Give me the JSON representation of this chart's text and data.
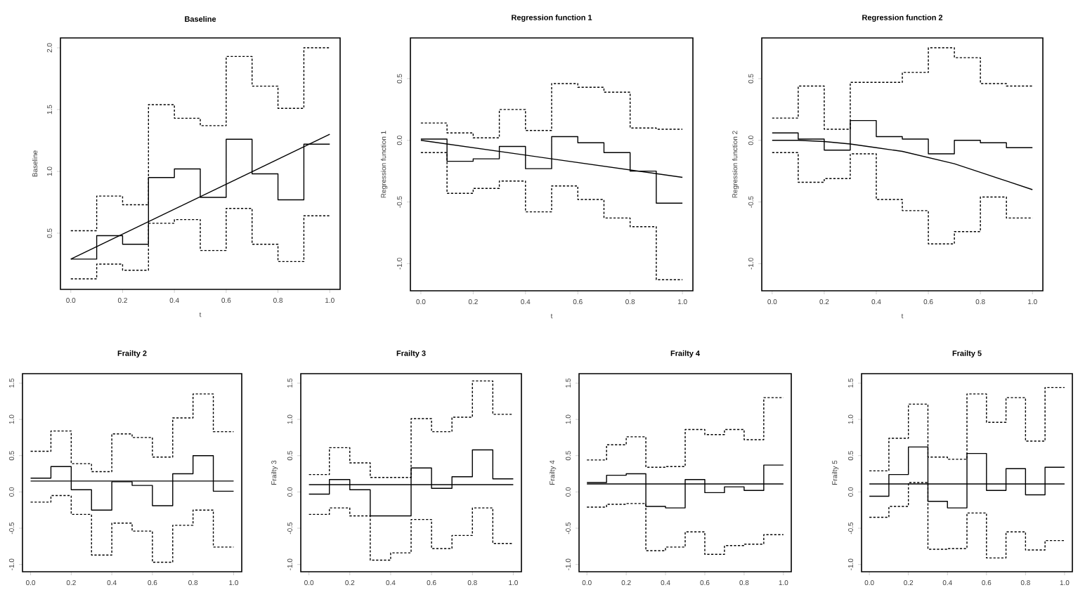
{
  "chart_data": [
    {
      "type": "step",
      "title": "Baseline",
      "xlabel": "t",
      "ylabel": "Baseline",
      "x": [
        0,
        0.1,
        0.2,
        0.3,
        0.4,
        0.5,
        0.6,
        0.7,
        0.8,
        0.9,
        1.0
      ],
      "xlim": [
        -0.04,
        1.04
      ],
      "ylim": [
        0.045,
        2.08
      ],
      "xticks": [
        {
          "value": 0,
          "label": "0.0"
        },
        {
          "value": 0.2,
          "label": "0.2"
        },
        {
          "value": 0.4,
          "label": "0.4"
        },
        {
          "value": 0.6,
          "label": "0.6"
        },
        {
          "value": 0.8,
          "label": "0.8"
        },
        {
          "value": 1,
          "label": "1.0"
        }
      ],
      "yticks": [
        {
          "value": 0.5,
          "label": "0.5"
        },
        {
          "value": 1,
          "label": "1.0"
        },
        {
          "value": 1.5,
          "label": "1.5"
        },
        {
          "value": 2,
          "label": "2.0"
        }
      ],
      "series": [
        {
          "color": "#000000",
          "line_style": "solid",
          "values": [
            0.29,
            0.48,
            0.41,
            0.95,
            1.02,
            0.79,
            1.26,
            0.98,
            0.77,
            1.22,
            1.22
          ]
        },
        {
          "color": "#000000",
          "line_style": "dashed",
          "values": [
            0.52,
            0.8,
            0.73,
            1.54,
            1.43,
            1.37,
            1.93,
            1.69,
            1.51,
            2.0,
            2.0
          ]
        },
        {
          "color": "#000000",
          "line_style": "dashed",
          "values": [
            0.13,
            0.25,
            0.2,
            0.58,
            0.61,
            0.36,
            0.7,
            0.41,
            0.27,
            0.64,
            0.64
          ]
        },
        {
          "type": "line",
          "color": "#000000",
          "line_style": "solid",
          "x": [
            0,
            1
          ],
          "values": [
            0.29,
            1.3
          ]
        }
      ]
    },
    {
      "type": "step",
      "title": "Regression function 1",
      "xlabel": "t",
      "ylabel": "Regression function 1",
      "x": [
        0,
        0.1,
        0.2,
        0.3,
        0.4,
        0.5,
        0.6,
        0.7,
        0.8,
        0.9,
        1.0
      ],
      "xlim": [
        -0.04,
        1.04
      ],
      "ylim": [
        -1.22,
        0.83
      ],
      "xticks": [
        {
          "value": 0,
          "label": "0.0"
        },
        {
          "value": 0.2,
          "label": "0.2"
        },
        {
          "value": 0.4,
          "label": "0.4"
        },
        {
          "value": 0.6,
          "label": "0.6"
        },
        {
          "value": 0.8,
          "label": "0.8"
        },
        {
          "value": 1,
          "label": "1.0"
        }
      ],
      "yticks": [
        {
          "value": -1,
          "label": "-1.0"
        },
        {
          "value": -0.5,
          "label": "-0.5"
        },
        {
          "value": 0,
          "label": "0.0"
        },
        {
          "value": 0.5,
          "label": "0.5"
        }
      ],
      "series": [
        {
          "color": "#000000",
          "line_style": "solid",
          "values": [
            0.01,
            -0.17,
            -0.15,
            -0.05,
            -0.23,
            0.03,
            -0.02,
            -0.1,
            -0.25,
            -0.51,
            -0.51
          ]
        },
        {
          "color": "#000000",
          "line_style": "dashed",
          "values": [
            0.14,
            0.06,
            0.02,
            0.25,
            0.08,
            0.46,
            0.43,
            0.39,
            0.1,
            0.09,
            0.09
          ]
        },
        {
          "color": "#000000",
          "line_style": "dashed",
          "values": [
            -0.1,
            -0.43,
            -0.39,
            -0.33,
            -0.58,
            -0.37,
            -0.48,
            -0.63,
            -0.7,
            -1.13,
            -1.13
          ]
        },
        {
          "type": "line",
          "color": "#000000",
          "line_style": "solid",
          "x": [
            0,
            1
          ],
          "values": [
            0,
            -0.3
          ]
        }
      ]
    },
    {
      "type": "step",
      "title": "Regression function 2",
      "xlabel": "t",
      "ylabel": "Regression function 2",
      "x": [
        0,
        0.1,
        0.2,
        0.3,
        0.4,
        0.5,
        0.6,
        0.7,
        0.8,
        0.9,
        1.0
      ],
      "xlim": [
        -0.04,
        1.04
      ],
      "ylim": [
        -1.22,
        0.83
      ],
      "xticks": [
        {
          "value": 0,
          "label": "0.0"
        },
        {
          "value": 0.2,
          "label": "0.2"
        },
        {
          "value": 0.4,
          "label": "0.4"
        },
        {
          "value": 0.6,
          "label": "0.6"
        },
        {
          "value": 0.8,
          "label": "0.8"
        },
        {
          "value": 1,
          "label": "1.0"
        }
      ],
      "yticks": [
        {
          "value": -1,
          "label": "-1.0"
        },
        {
          "value": -0.5,
          "label": "-0.5"
        },
        {
          "value": 0,
          "label": "0.0"
        },
        {
          "value": 0.5,
          "label": "0.5"
        }
      ],
      "series": [
        {
          "color": "#000000",
          "line_style": "solid",
          "values": [
            0.06,
            0.01,
            -0.08,
            0.16,
            0.03,
            0.01,
            -0.11,
            0.0,
            -0.02,
            -0.06,
            -0.06
          ]
        },
        {
          "color": "#000000",
          "line_style": "dashed",
          "values": [
            0.18,
            0.44,
            0.09,
            0.47,
            0.47,
            0.55,
            0.75,
            0.67,
            0.46,
            0.44,
            0.44
          ]
        },
        {
          "color": "#000000",
          "line_style": "dashed",
          "values": [
            -0.1,
            -0.34,
            -0.31,
            -0.11,
            -0.48,
            -0.57,
            -0.84,
            -0.74,
            -0.46,
            -0.63,
            -0.63
          ]
        },
        {
          "type": "line",
          "color": "#000000",
          "line_style": "solid",
          "x": [
            0,
            0.1,
            0.2,
            0.3,
            0.4,
            0.5,
            0.6,
            0.7,
            0.8,
            0.9,
            1.0
          ],
          "values": [
            0,
            0.0,
            -0.01,
            -0.03,
            -0.06,
            -0.09,
            -0.14,
            -0.19,
            -0.26,
            -0.33,
            -0.4
          ]
        }
      ]
    },
    {
      "type": "step",
      "title": "Frailty 2",
      "x": [
        0,
        0.1,
        0.2,
        0.3,
        0.4,
        0.5,
        0.6,
        0.7,
        0.8,
        0.9,
        1.0
      ],
      "xlim": [
        -0.04,
        1.04
      ],
      "ylim": [
        -1.1,
        1.63
      ],
      "xticks": [
        {
          "value": 0,
          "label": "0.0"
        },
        {
          "value": 0.2,
          "label": "0.2"
        },
        {
          "value": 0.4,
          "label": "0.4"
        },
        {
          "value": 0.6,
          "label": "0.6"
        },
        {
          "value": 0.8,
          "label": "0.8"
        },
        {
          "value": 1,
          "label": "1.0"
        }
      ],
      "yticks": [
        {
          "value": -1,
          "label": "-1.0"
        },
        {
          "value": -0.5,
          "label": "-0.5"
        },
        {
          "value": 0,
          "label": "0.0"
        },
        {
          "value": 0.5,
          "label": "0.5"
        },
        {
          "value": 1,
          "label": "1.0"
        },
        {
          "value": 1.5,
          "label": "1.5"
        }
      ],
      "series": [
        {
          "color": "#000000",
          "line_style": "solid",
          "values": [
            0.19,
            0.35,
            0.03,
            -0.25,
            0.14,
            0.09,
            -0.19,
            0.25,
            0.5,
            0.01,
            0.01
          ]
        },
        {
          "color": "#000000",
          "line_style": "dashed",
          "values": [
            0.56,
            0.84,
            0.39,
            0.28,
            0.8,
            0.75,
            0.48,
            1.02,
            1.35,
            0.83,
            0.83
          ]
        },
        {
          "color": "#000000",
          "line_style": "dashed",
          "values": [
            -0.14,
            -0.05,
            -0.31,
            -0.87,
            -0.43,
            -0.54,
            -0.97,
            -0.46,
            -0.25,
            -0.76,
            -0.76
          ]
        },
        {
          "type": "line",
          "color": "#000000",
          "line_style": "solid",
          "x": [
            0,
            1
          ],
          "values": [
            0.15,
            0.15
          ]
        }
      ]
    },
    {
      "type": "step",
      "title": "Frailty 3",
      "ylabel": "Frailty 3",
      "x": [
        0,
        0.1,
        0.2,
        0.3,
        0.4,
        0.5,
        0.6,
        0.7,
        0.8,
        0.9,
        1.0
      ],
      "xlim": [
        -0.04,
        1.04
      ],
      "ylim": [
        -1.1,
        1.63
      ],
      "xticks": [
        {
          "value": 0,
          "label": "0.0"
        },
        {
          "value": 0.2,
          "label": "0.2"
        },
        {
          "value": 0.4,
          "label": "0.4"
        },
        {
          "value": 0.6,
          "label": "0.6"
        },
        {
          "value": 0.8,
          "label": "0.8"
        },
        {
          "value": 1,
          "label": "1.0"
        }
      ],
      "yticks": [
        {
          "value": -1,
          "label": "-1.0"
        },
        {
          "value": -0.5,
          "label": "-0.5"
        },
        {
          "value": 0,
          "label": "0.0"
        },
        {
          "value": 0.5,
          "label": "0.5"
        },
        {
          "value": 1,
          "label": "1.0"
        },
        {
          "value": 1.5,
          "label": "1.5"
        }
      ],
      "series": [
        {
          "color": "#000000",
          "line_style": "solid",
          "values": [
            -0.03,
            0.17,
            0.03,
            -0.33,
            -0.33,
            0.33,
            0.05,
            0.21,
            0.58,
            0.18,
            0.18
          ]
        },
        {
          "color": "#000000",
          "line_style": "dashed",
          "values": [
            0.24,
            0.61,
            0.4,
            0.2,
            0.2,
            1.01,
            0.83,
            1.03,
            1.53,
            1.07,
            1.07
          ]
        },
        {
          "color": "#000000",
          "line_style": "dashed",
          "values": [
            -0.31,
            -0.22,
            -0.33,
            -0.94,
            -0.84,
            -0.38,
            -0.78,
            -0.6,
            -0.22,
            -0.71,
            -0.71
          ]
        },
        {
          "type": "line",
          "color": "#000000",
          "line_style": "solid",
          "x": [
            0,
            1
          ],
          "values": [
            0.1,
            0.1
          ]
        }
      ]
    },
    {
      "type": "step",
      "title": "Frailty 4",
      "ylabel": "Frailty 4",
      "x": [
        0,
        0.1,
        0.2,
        0.3,
        0.4,
        0.5,
        0.6,
        0.7,
        0.8,
        0.9,
        1.0
      ],
      "xlim": [
        -0.04,
        1.04
      ],
      "ylim": [
        -1.1,
        1.63
      ],
      "xticks": [
        {
          "value": 0,
          "label": "0.0"
        },
        {
          "value": 0.2,
          "label": "0.2"
        },
        {
          "value": 0.4,
          "label": "0.4"
        },
        {
          "value": 0.6,
          "label": "0.6"
        },
        {
          "value": 0.8,
          "label": "0.8"
        },
        {
          "value": 1,
          "label": "1.0"
        }
      ],
      "yticks": [
        {
          "value": -1,
          "label": "-1.0"
        },
        {
          "value": -0.5,
          "label": "-0.5"
        },
        {
          "value": 0,
          "label": "0.0"
        },
        {
          "value": 0.5,
          "label": "0.5"
        },
        {
          "value": 1,
          "label": "1.0"
        },
        {
          "value": 1.5,
          "label": "1.5"
        }
      ],
      "series": [
        {
          "color": "#000000",
          "line_style": "solid",
          "values": [
            0.13,
            0.23,
            0.25,
            -0.2,
            -0.22,
            0.17,
            -0.01,
            0.07,
            0.02,
            0.37,
            0.37
          ]
        },
        {
          "color": "#000000",
          "line_style": "dashed",
          "values": [
            0.44,
            0.65,
            0.76,
            0.34,
            0.35,
            0.86,
            0.79,
            0.86,
            0.72,
            1.3,
            1.3
          ]
        },
        {
          "color": "#000000",
          "line_style": "dashed",
          "values": [
            -0.21,
            -0.17,
            -0.16,
            -0.81,
            -0.76,
            -0.55,
            -0.86,
            -0.74,
            -0.72,
            -0.59,
            -0.59
          ]
        },
        {
          "type": "line",
          "color": "#000000",
          "line_style": "solid",
          "x": [
            0,
            1
          ],
          "values": [
            0.11,
            0.11
          ]
        }
      ]
    },
    {
      "type": "step",
      "title": "Frailty 5",
      "ylabel": "Frailty 5",
      "x": [
        0,
        0.1,
        0.2,
        0.3,
        0.4,
        0.5,
        0.6,
        0.7,
        0.8,
        0.9,
        1.0
      ],
      "xlim": [
        -0.04,
        1.04
      ],
      "ylim": [
        -1.1,
        1.63
      ],
      "xticks": [
        {
          "value": 0,
          "label": "0.0"
        },
        {
          "value": 0.2,
          "label": "0.2"
        },
        {
          "value": 0.4,
          "label": "0.4"
        },
        {
          "value": 0.6,
          "label": "0.6"
        },
        {
          "value": 0.8,
          "label": "0.8"
        },
        {
          "value": 1,
          "label": "1.0"
        }
      ],
      "yticks": [
        {
          "value": -1,
          "label": "-1.0"
        },
        {
          "value": -0.5,
          "label": "-0.5"
        },
        {
          "value": 0,
          "label": "0.0"
        },
        {
          "value": 0.5,
          "label": "0.5"
        },
        {
          "value": 1,
          "label": "1.0"
        },
        {
          "value": 1.5,
          "label": "1.5"
        }
      ],
      "series": [
        {
          "color": "#000000",
          "line_style": "solid",
          "values": [
            -0.06,
            0.24,
            0.62,
            -0.13,
            -0.22,
            0.53,
            0.02,
            0.32,
            -0.04,
            0.34,
            0.34
          ]
        },
        {
          "color": "#000000",
          "line_style": "dashed",
          "values": [
            0.29,
            0.74,
            1.21,
            0.48,
            0.45,
            1.35,
            0.96,
            1.3,
            0.7,
            1.44,
            1.44
          ]
        },
        {
          "color": "#000000",
          "line_style": "dashed",
          "values": [
            -0.35,
            -0.2,
            0.13,
            -0.79,
            -0.78,
            -0.29,
            -0.91,
            -0.55,
            -0.8,
            -0.67,
            -0.67
          ]
        },
        {
          "type": "line",
          "color": "#000000",
          "line_style": "solid",
          "x": [
            0,
            1
          ],
          "values": [
            0.11,
            0.11
          ]
        }
      ]
    }
  ]
}
